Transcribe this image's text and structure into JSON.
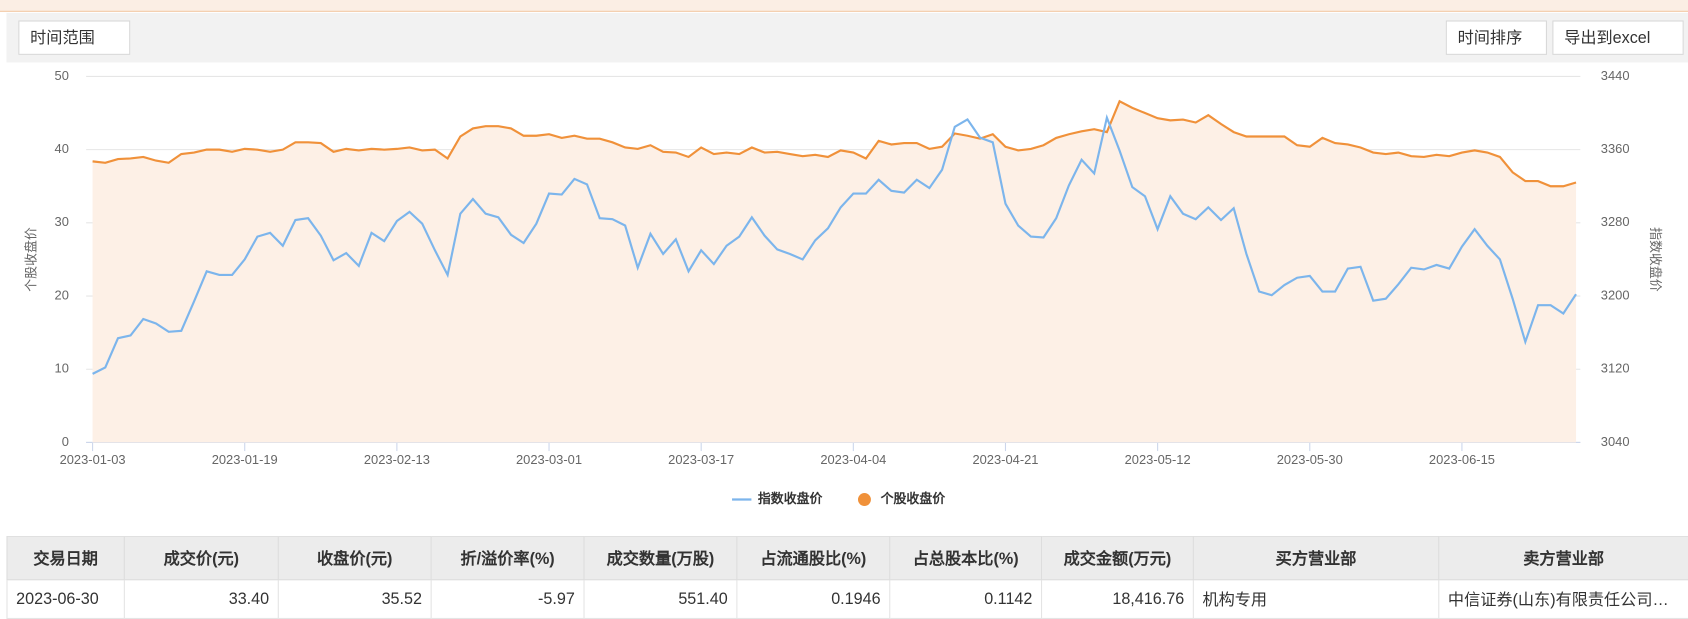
{
  "toolbar": {
    "range": "时间范围",
    "sort": "时间排序",
    "export": "导出到excel"
  },
  "chart_data": {
    "type": "line",
    "categories": [
      "2023-01-03",
      null,
      null,
      null,
      null,
      null,
      null,
      null,
      null,
      null,
      null,
      null,
      "2023-01-19",
      null,
      null,
      null,
      null,
      null,
      null,
      null,
      null,
      null,
      null,
      null,
      "2023-02-13",
      null,
      null,
      null,
      null,
      null,
      null,
      null,
      null,
      null,
      null,
      null,
      "2023-03-01",
      null,
      null,
      null,
      null,
      null,
      null,
      null,
      null,
      null,
      null,
      null,
      "2023-03-17",
      null,
      null,
      null,
      null,
      null,
      null,
      null,
      null,
      null,
      null,
      null,
      "2023-04-04",
      null,
      null,
      null,
      null,
      null,
      null,
      null,
      null,
      null,
      null,
      null,
      "2023-04-21",
      null,
      null,
      null,
      null,
      null,
      null,
      null,
      null,
      null,
      null,
      null,
      "2023-05-12",
      null,
      null,
      null,
      null,
      null,
      null,
      null,
      null,
      null,
      null,
      null,
      "2023-05-30",
      null,
      null,
      null,
      null,
      null,
      null,
      null,
      null,
      null,
      null,
      null,
      "2023-06-15",
      null,
      null,
      null,
      null,
      null,
      null,
      null,
      null,
      null
    ],
    "series": [
      {
        "name": "指数收盘价",
        "color": "#7cb5ec",
        "axis": "y2",
        "values": [
          3115,
          3122,
          3154,
          3157,
          3175,
          3170,
          3161,
          3162,
          3194,
          3227,
          3223,
          3223,
          3240,
          3265,
          3269,
          3255,
          3283,
          3285,
          3266,
          3239,
          3247,
          3233,
          3269,
          3260,
          3282,
          3292,
          3279,
          3250,
          3223,
          3290,
          3306,
          3290,
          3286,
          3267,
          3258,
          3279,
          3312,
          3311,
          3328,
          3322,
          3285,
          3284,
          3277,
          3231,
          3268,
          3246,
          3262,
          3227,
          3250,
          3235,
          3255,
          3265,
          3286,
          3266,
          3251,
          3246,
          3240,
          3261,
          3274,
          3297,
          3312,
          3312,
          3327,
          3315,
          3313,
          3327,
          3318,
          3338,
          3385,
          3393,
          3373,
          3368,
          3301,
          3277,
          3265,
          3264,
          3285,
          3321,
          3349,
          3334,
          3395,
          3359,
          3319,
          3309,
          3273,
          3309,
          3290,
          3284,
          3297,
          3283,
          3296,
          3246,
          3205,
          3201,
          3212,
          3220,
          3222,
          3205,
          3205,
          3230,
          3232,
          3195,
          3197,
          3213,
          3231,
          3229,
          3234,
          3230,
          3254,
          3273,
          3255,
          3240,
          3197,
          3150,
          3190,
          3190,
          3181,
          3202
        ]
      },
      {
        "name": "个股收盘价",
        "color": "#f0913a",
        "area": true,
        "area_color": "#fdf0e6",
        "values": [
          38.4,
          38.2,
          38.7,
          38.8,
          39,
          38.5,
          38.2,
          39.4,
          39.6,
          40,
          40,
          39.7,
          40.1,
          40,
          39.7,
          40,
          41,
          41,
          40.9,
          39.7,
          40.1,
          39.9,
          40.1,
          40,
          40.1,
          40.3,
          39.9,
          40,
          38.8,
          41.8,
          42.9,
          43.2,
          43.2,
          42.9,
          41.9,
          41.9,
          42.1,
          41.6,
          41.9,
          41.5,
          41.5,
          41,
          40.3,
          40.1,
          40.6,
          39.7,
          39.6,
          39,
          40.3,
          39.4,
          39.6,
          39.4,
          40.3,
          39.6,
          39.7,
          39.4,
          39.1,
          39.3,
          39,
          39.9,
          39.6,
          38.8,
          41.2,
          40.7,
          40.9,
          40.9,
          40.1,
          40.4,
          42.2,
          41.9,
          41.5,
          42.1,
          40.4,
          39.9,
          40.1,
          40.6,
          41.6,
          42.1,
          42.5,
          42.8,
          42.4,
          46.6,
          45.7,
          45,
          44.3,
          44,
          44.1,
          43.7,
          44.7,
          43.5,
          42.4,
          41.8,
          41.8,
          41.8,
          41.8,
          40.6,
          40.4,
          41.6,
          40.9,
          40.7,
          40.3,
          39.6,
          39.4,
          39.6,
          39.1,
          39,
          39.3,
          39.1,
          39.6,
          39.9,
          39.6,
          39,
          36.9,
          35.7,
          35.7,
          35,
          35,
          35.52
        ]
      }
    ],
    "ylabel": "个股收盘价",
    "y2label": "指数收盘价",
    "ylim": [
      0,
      50
    ],
    "yticks": [
      0,
      10,
      20,
      30,
      40,
      50
    ],
    "y2lim": [
      3040,
      3440
    ],
    "y2ticks": [
      3040,
      3120,
      3200,
      3280,
      3360,
      3440
    ],
    "grid": true
  },
  "table": {
    "columns": [
      "交易日期",
      "成交价(元)",
      "收盘价(元)",
      "折/溢价率(%)",
      "成交数量(万股)",
      "占流通股比(%)",
      "占总股本比(%)",
      "成交金额(万元)",
      "买方营业部",
      "卖方营业部"
    ],
    "rows": [
      [
        "2023-06-30",
        "33.40",
        "35.52",
        "-5.97",
        "551.40",
        "0.1946",
        "0.1142",
        "18,416.76",
        "机构专用",
        "中信证券(山东)有限责任公司…"
      ]
    ]
  }
}
